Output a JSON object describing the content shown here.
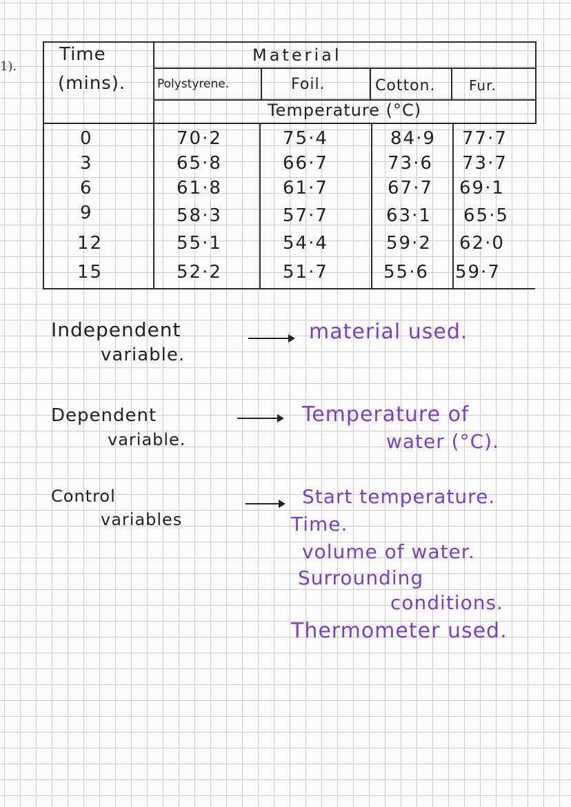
{
  "margin_mark": "1).",
  "table": {
    "header_time": "Time",
    "header_time_unit": "(mins).",
    "header_material": "Material",
    "materials": [
      "Polystyrene.",
      "Foil.",
      "Cotton.",
      "Fur."
    ],
    "header_temperature": "Temperature (°C)",
    "rows": [
      {
        "time": "0",
        "values": [
          "70·2",
          "75·4",
          "84·9",
          "77·7"
        ]
      },
      {
        "time": "3",
        "values": [
          "65·8",
          "66·7",
          "73·6",
          "73·7"
        ]
      },
      {
        "time": "6",
        "values": [
          "61·8",
          "61·7",
          "67·7",
          "69·1"
        ]
      },
      {
        "time": "9",
        "values": [
          "58·3",
          "57·7",
          "63·1",
          "65·5"
        ]
      },
      {
        "time": "12",
        "values": [
          "55·1",
          "54·4",
          "59·2",
          "62·0"
        ]
      },
      {
        "time": "15",
        "values": [
          "52·2",
          "51·7",
          "55·6",
          "59·7"
        ]
      }
    ]
  },
  "notes": {
    "independent_label_1": "Independent",
    "independent_label_2": "variable.",
    "independent_value": "material used.",
    "dependent_label_1": "Dependent",
    "dependent_label_2": "variable.",
    "dependent_value_1": "Temperature of",
    "dependent_value_2": "water (°C).",
    "control_label_1": "Control",
    "control_label_2": "variables",
    "control_values": [
      "Start temperature.",
      "Time.",
      "volume of water.",
      "Surrounding",
      "conditions.",
      "Thermometer used."
    ]
  },
  "colors": {
    "pencil_ink": "#222222",
    "purple_ink": "#7a3fc4",
    "grid": "#c9ccd3"
  }
}
